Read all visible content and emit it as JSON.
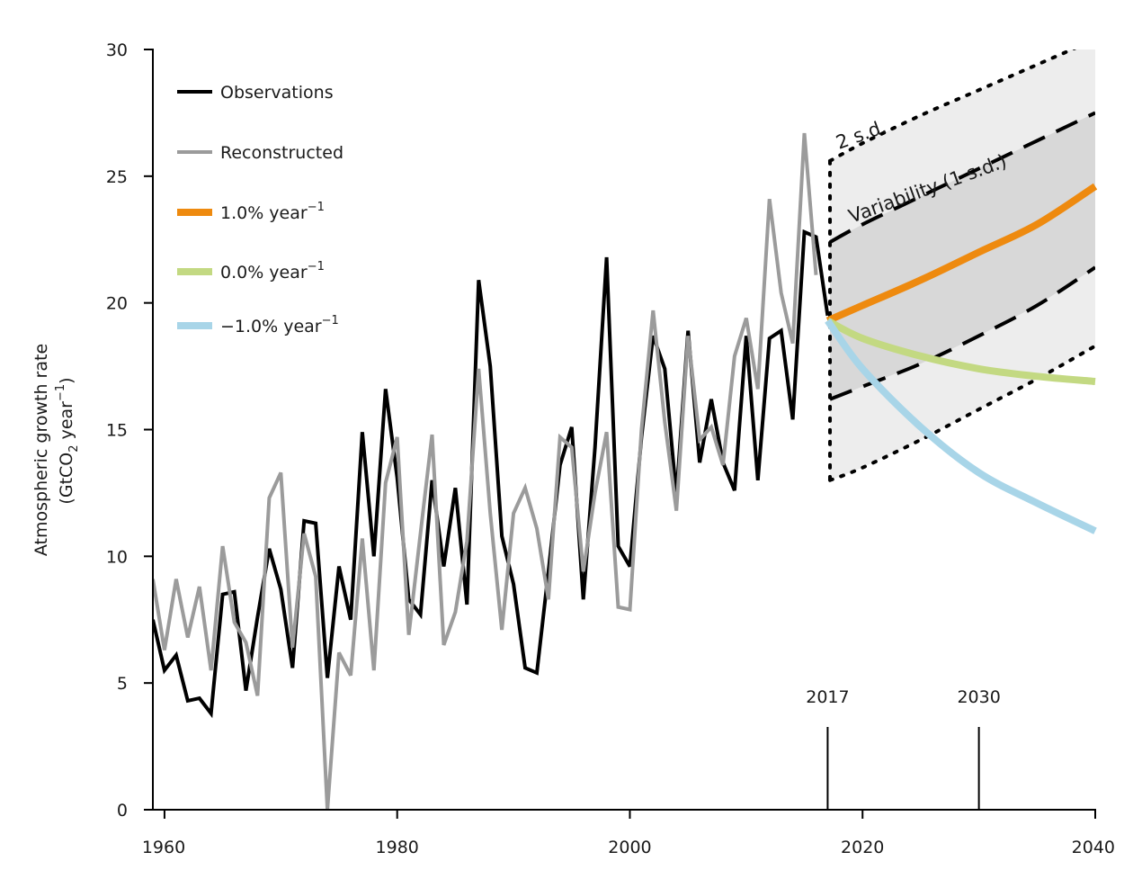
{
  "chart_data": {
    "type": "line",
    "title": "",
    "ylabel": "Atmospheric growth rate",
    "ylabel_unit_parts": [
      "(GtCO",
      "2",
      " year",
      "−1",
      ")"
    ],
    "xlim": [
      1959,
      2040
    ],
    "ylim": [
      0,
      30
    ],
    "x_ticks": [
      1960,
      1980,
      2000,
      2020,
      2040
    ],
    "y_ticks": [
      0,
      5,
      10,
      15,
      20,
      25,
      30
    ],
    "grid": false,
    "legend_position": "top-left",
    "colors": {
      "observations": "#000000",
      "reconstructed": "#9b9b9b",
      "growth_plus1": "#ee8a0f",
      "growth_zero": "#c3d982",
      "growth_minus1": "#a8d5e8",
      "band_1sd": "#d8d8d8",
      "band_2sd": "#ededed"
    },
    "legend": [
      {
        "key": "observations",
        "text": "Observations",
        "sup": ""
      },
      {
        "key": "reconstructed",
        "text": "Reconstructed",
        "sup": ""
      },
      {
        "key": "growth_plus1",
        "text": "1.0% year",
        "sup": "−1"
      },
      {
        "key": "growth_zero",
        "text": "0.0% year",
        "sup": "−1"
      },
      {
        "key": "growth_minus1",
        "text": "−1.0% year",
        "sup": "−1"
      }
    ],
    "series": [
      {
        "name": "Observations",
        "key": "observations",
        "x": [
          1959,
          1960,
          1961,
          1962,
          1963,
          1964,
          1965,
          1966,
          1967,
          1968,
          1969,
          1970,
          1971,
          1972,
          1973,
          1974,
          1975,
          1976,
          1977,
          1978,
          1979,
          1980,
          1981,
          1982,
          1983,
          1984,
          1985,
          1986,
          1987,
          1988,
          1989,
          1990,
          1991,
          1992,
          1993,
          1994,
          1995,
          1996,
          1997,
          1998,
          1999,
          2000,
          2001,
          2002,
          2003,
          2004,
          2005,
          2006,
          2007,
          2008,
          2009,
          2010,
          2011,
          2012,
          2013,
          2014,
          2015,
          2016,
          2017
        ],
        "y": [
          7.5,
          5.5,
          6.1,
          4.3,
          4.4,
          3.8,
          8.5,
          8.6,
          4.7,
          7.6,
          10.3,
          8.7,
          5.6,
          11.4,
          11.3,
          5.2,
          9.6,
          7.5,
          14.9,
          10.0,
          16.6,
          13.1,
          8.3,
          7.7,
          13.0,
          9.6,
          12.7,
          8.1,
          20.9,
          17.5,
          10.8,
          8.9,
          5.6,
          5.4,
          9.4,
          13.6,
          15.1,
          8.3,
          14.3,
          21.8,
          10.4,
          9.6,
          14.7,
          18.7,
          17.4,
          12.4,
          18.9,
          13.7,
          16.2,
          13.7,
          12.6,
          18.7,
          13.0,
          18.6,
          18.9,
          15.4,
          22.8,
          22.6,
          19.5
        ]
      },
      {
        "name": "Reconstructed",
        "key": "reconstructed",
        "x": [
          1959,
          1960,
          1961,
          1962,
          1963,
          1964,
          1965,
          1966,
          1967,
          1968,
          1969,
          1970,
          1971,
          1972,
          1973,
          1974,
          1975,
          1976,
          1977,
          1978,
          1979,
          1980,
          1981,
          1982,
          1983,
          1984,
          1985,
          1986,
          1987,
          1988,
          1989,
          1990,
          1991,
          1992,
          1993,
          1994,
          1995,
          1996,
          1997,
          1998,
          1999,
          2000,
          2001,
          2002,
          2003,
          2004,
          2005,
          2006,
          2007,
          2008,
          2009,
          2010,
          2011,
          2012,
          2013,
          2014,
          2015,
          2016
        ],
        "y": [
          9.1,
          6.3,
          9.1,
          6.8,
          8.8,
          5.5,
          10.4,
          7.4,
          6.6,
          4.5,
          12.3,
          13.3,
          6.4,
          10.9,
          9.2,
          0.0,
          6.2,
          5.3,
          10.7,
          5.5,
          12.9,
          14.7,
          6.9,
          10.9,
          14.8,
          6.5,
          7.8,
          10.6,
          17.4,
          11.7,
          7.1,
          11.7,
          12.7,
          11.1,
          8.3,
          14.7,
          14.3,
          9.4,
          12.5,
          14.9,
          8.0,
          7.9,
          15.0,
          19.7,
          15.3,
          11.8,
          18.7,
          14.6,
          15.1,
          13.6,
          17.9,
          19.4,
          16.6,
          24.1,
          20.4,
          18.4,
          26.7,
          21.1
        ]
      },
      {
        "name": "1.0% year−1",
        "key": "growth_plus1",
        "x": [
          2017,
          2020,
          2025,
          2030,
          2035,
          2040
        ],
        "y": [
          19.3,
          19.9,
          20.9,
          22.0,
          23.1,
          24.6
        ]
      },
      {
        "name": "0.0% year−1",
        "key": "growth_zero",
        "x": [
          2017,
          2020,
          2025,
          2030,
          2035,
          2040
        ],
        "y": [
          19.3,
          18.6,
          17.9,
          17.4,
          17.1,
          16.9
        ]
      },
      {
        "name": "−1.0% year−1",
        "key": "growth_minus1",
        "x": [
          2017,
          2020,
          2025,
          2030,
          2035,
          2040
        ],
        "y": [
          19.3,
          17.4,
          15.1,
          13.3,
          12.1,
          11.0
        ]
      }
    ],
    "bands": {
      "x": [
        2017.2,
        2020,
        2025,
        2030,
        2035,
        2040
      ],
      "sd1_upper": [
        22.4,
        23.1,
        24.2,
        25.3,
        26.4,
        27.5
      ],
      "sd1_lower": [
        16.2,
        16.7,
        17.6,
        18.7,
        19.9,
        21.4
      ],
      "sd2_upper": [
        25.6,
        26.3,
        27.4,
        28.4,
        29.4,
        30.4
      ],
      "sd2_lower": [
        13.0,
        13.5,
        14.6,
        15.8,
        17.0,
        18.3
      ]
    },
    "annotations": {
      "sd2_label": "2 s.d.",
      "sd1_label": "Variability (1 s.d.)",
      "markers": [
        {
          "year": 2017,
          "label": "2017"
        },
        {
          "year": 2030,
          "label": "2030"
        }
      ]
    }
  }
}
